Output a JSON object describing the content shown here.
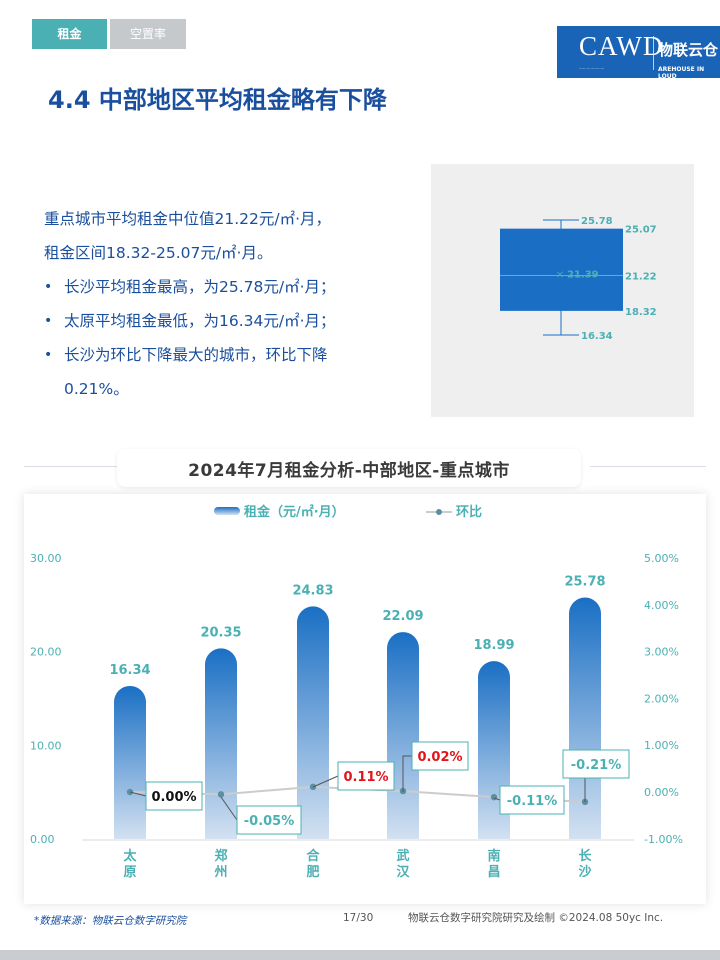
{
  "tabs": [
    "租金",
    "空置率"
  ],
  "logo": {
    "cawd": "CAWD",
    "brand": "物联云仓",
    "brand_sub": "AREHOUSE IN LOUD"
  },
  "page_title": "4.4 中部地区平均租金略有下降",
  "intro": {
    "line1": "重点城市平均租金中位值21.22元/㎡·月，",
    "line2": "租金区间18.32-25.07元/㎡·月。",
    "bullets": [
      "长沙平均租金最高，为25.78元/㎡·月；",
      "太原平均租金最低，为16.34元/㎡·月；",
      "长沙为环比下降最大的城市，环比下降"
    ],
    "bullet3_cont": "0.21%。"
  },
  "box_plot": {
    "max": 25.78,
    "q3": 25.07,
    "mean": 21.39,
    "median": 21.22,
    "q1": 18.32,
    "min": 16.34,
    "labels": {
      "max": "25.78",
      "q3": "25.07",
      "mean": "21.39",
      "median": "21.22",
      "q1": "18.32",
      "min": "16.34"
    },
    "color": "#1a6fc4"
  },
  "chart_title": "2024年7月租金分析-中部地区-重点城市",
  "chart_data": {
    "type": "bar",
    "categories": [
      "太原",
      "郑州",
      "合肥",
      "武汉",
      "南昌",
      "长沙"
    ],
    "series": [
      {
        "name": "租金（元/㎡·月）",
        "type": "bar",
        "axis": "left",
        "values": [
          16.34,
          20.35,
          24.83,
          22.09,
          18.99,
          25.78
        ],
        "labels": [
          "16.34",
          "20.35",
          "24.83",
          "22.09",
          "18.99",
          "25.78"
        ]
      },
      {
        "name": "环比",
        "type": "line",
        "axis": "right",
        "values": [
          0.0,
          -0.05,
          0.11,
          0.02,
          -0.11,
          -0.21
        ],
        "labels": [
          "0.00%",
          "-0.05%",
          "0.11%",
          "0.02%",
          "-0.11%",
          "-0.21%"
        ]
      }
    ],
    "y_left": {
      "ticks": [
        "30.00",
        "20.00",
        "10.00",
        "0.00"
      ],
      "range": [
        0,
        30
      ]
    },
    "y_right": {
      "ticks": [
        "5.00%",
        "4.00%",
        "3.00%",
        "2.00%",
        "1.00%",
        "0.00%",
        "-1.00%"
      ],
      "range": [
        -1,
        5
      ]
    },
    "legend_position": "top-center",
    "colors": {
      "bar_top": "#1a6fc4",
      "bar_bottom": "#d3e1f1",
      "line": "#cccccc",
      "label_teal": "#4bb0b3",
      "label_red": "#e0151b",
      "label_black": "#111111"
    }
  },
  "footer": {
    "source": "*数据来源：物联云仓数字研究院",
    "page": "17/30",
    "credit": "物联云仓数字研究院研究及绘制  ©2024.08 50yc Inc."
  }
}
